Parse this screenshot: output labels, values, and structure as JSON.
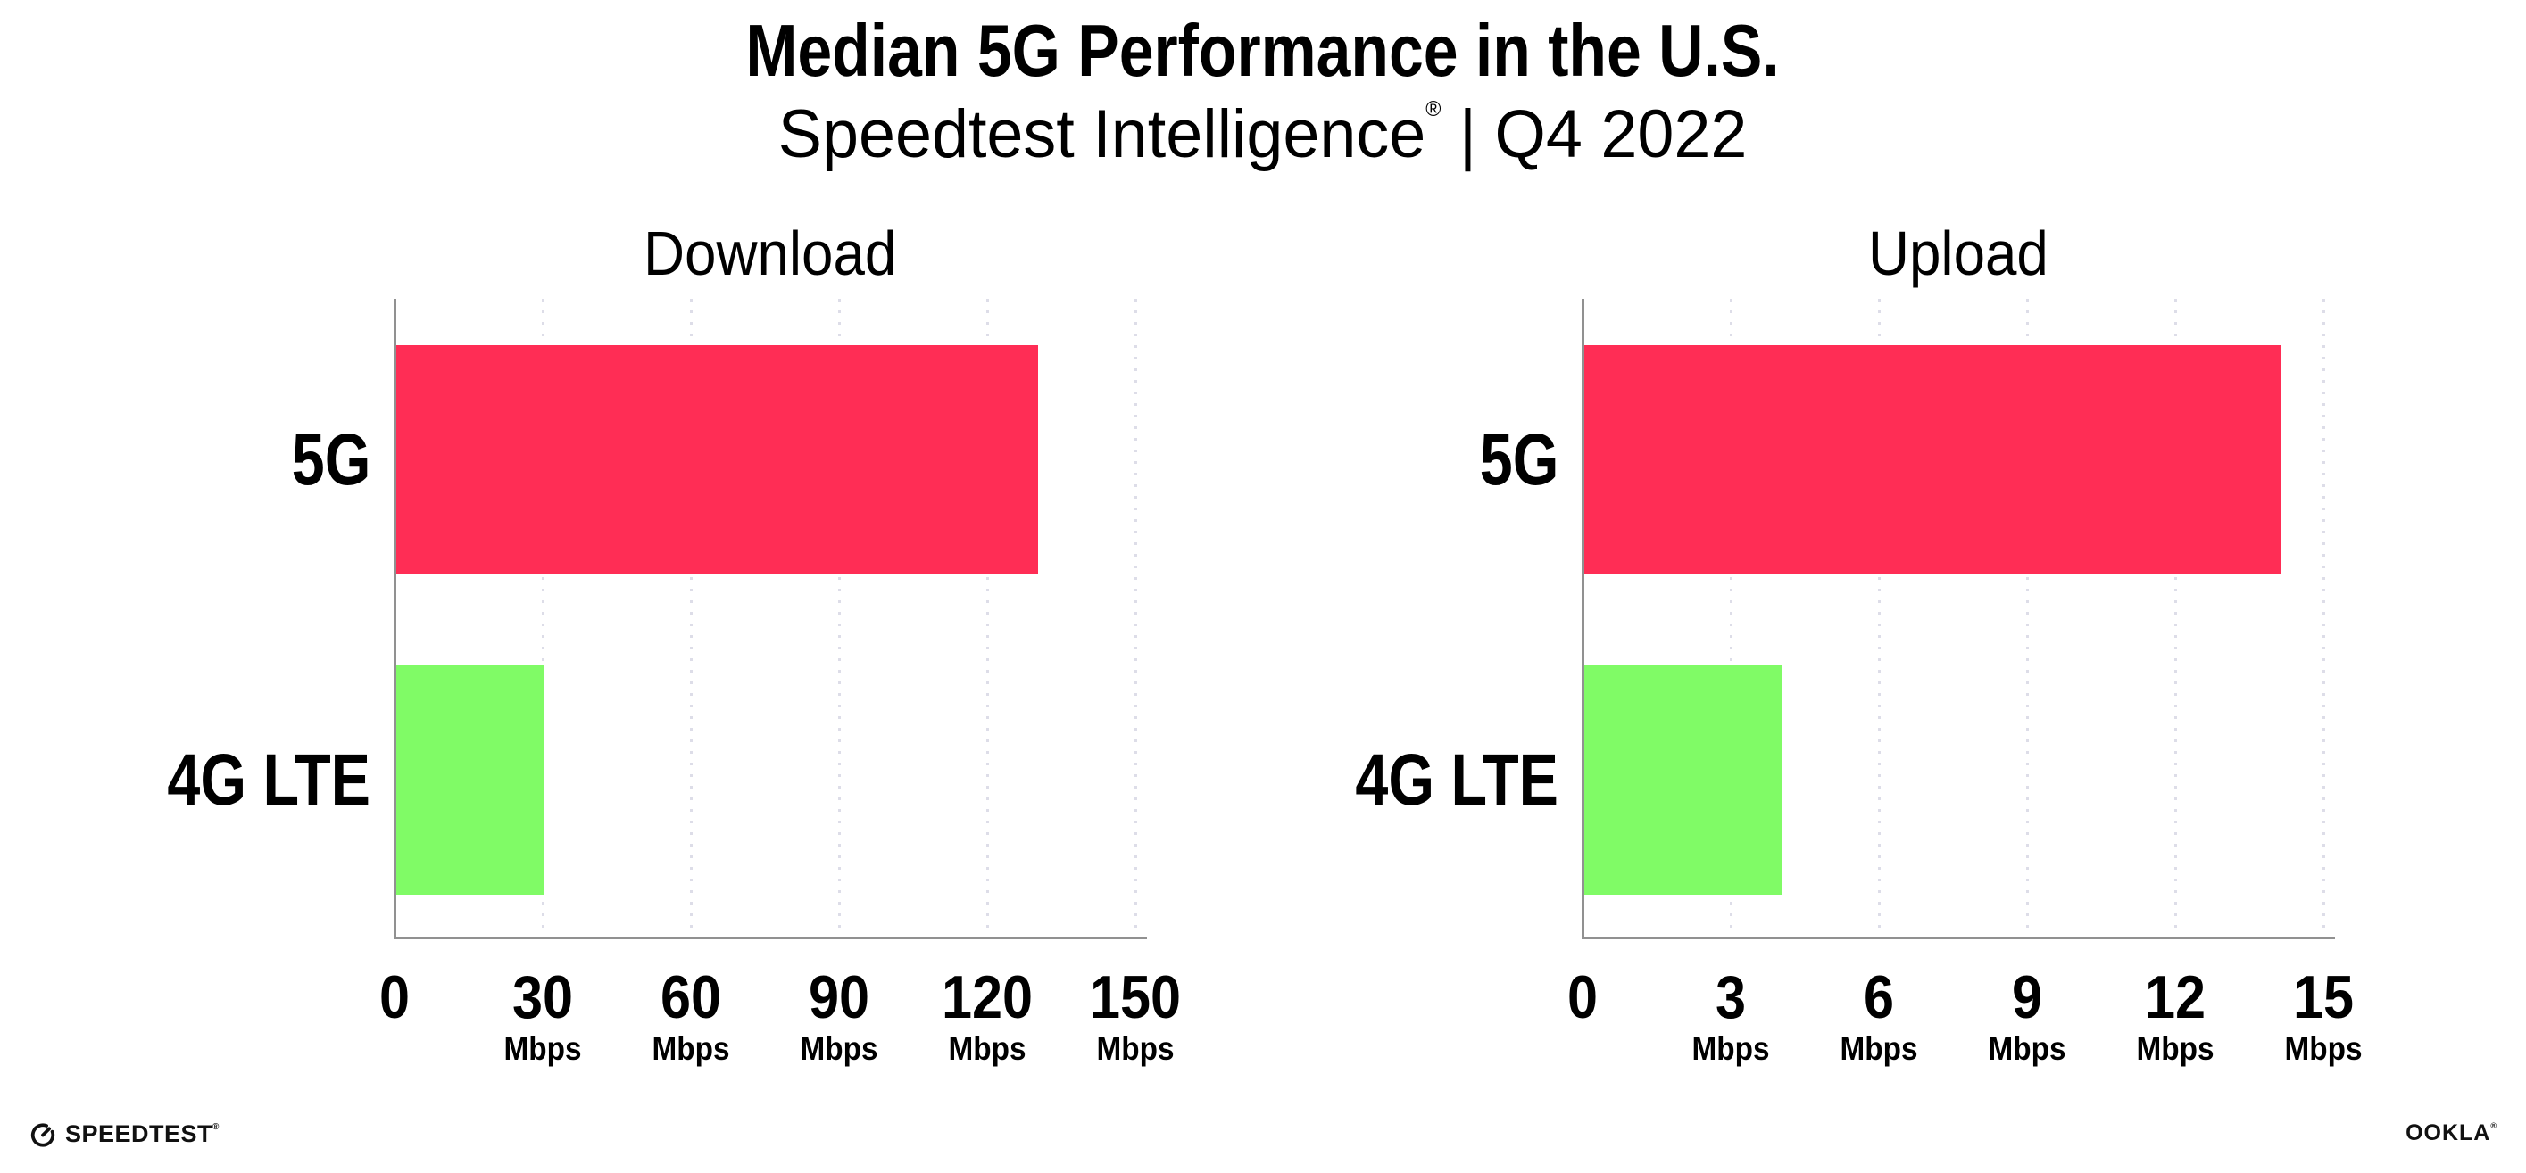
{
  "header": {
    "title": "Median 5G Performance in the U.S.",
    "subtitle_brand": "Speedtest Intelligence",
    "subtitle_reg": "®",
    "subtitle_rest": " | Q4 2022"
  },
  "chart_data": [
    {
      "type": "bar",
      "orientation": "horizontal",
      "title": "Download",
      "categories": [
        "5G",
        "4G LTE"
      ],
      "values": [
        130,
        30
      ],
      "unit": "Mbps",
      "xlim": [
        0,
        150
      ],
      "xticks": [
        0,
        30,
        60,
        90,
        120,
        150
      ],
      "tick_unit_label": "Mbps",
      "bar_colors": [
        "#FF2D55",
        "#80FB66"
      ],
      "grid": "vertical-dotted",
      "legend": "none"
    },
    {
      "type": "bar",
      "orientation": "horizontal",
      "title": "Upload",
      "categories": [
        "5G",
        "4G LTE"
      ],
      "values": [
        14.1,
        4
      ],
      "unit": "Mbps",
      "xlim": [
        0,
        15
      ],
      "xticks": [
        0,
        3,
        6,
        9,
        12,
        15
      ],
      "tick_unit_label": "Mbps",
      "bar_colors": [
        "#FF2D55",
        "#80FB66"
      ],
      "grid": "vertical-dotted",
      "legend": "none"
    }
  ],
  "footer": {
    "speedtest_text": "SPEEDTEST",
    "speedtest_reg": "®",
    "ookla_text": "OOKLA",
    "ookla_reg": "®"
  },
  "colors": {
    "bar_5g": "#FF2D55",
    "bar_4g_lte": "#80FB66",
    "axis_line": "#919191",
    "gridline": "#DDDDE8",
    "text": "#000000",
    "background": "#FFFFFF"
  }
}
